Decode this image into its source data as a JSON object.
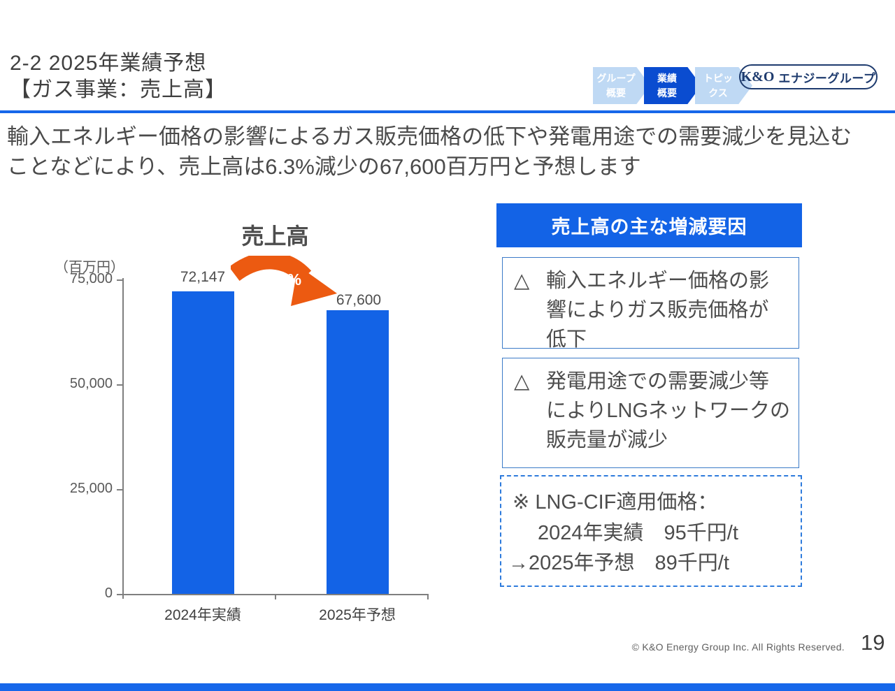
{
  "header": {
    "title_line1": "2-2 2025年業績予想",
    "title_line2": "【ガス事業：売上高】",
    "nav_steps": [
      {
        "line1": "グループ",
        "line2": "概要",
        "active": false
      },
      {
        "line1": "業績",
        "line2": "概要",
        "active": true
      },
      {
        "line1": "トピッ",
        "line2": "クス",
        "active": false
      }
    ],
    "logo_mark": "K&O",
    "logo_name": "エナジーグループ"
  },
  "lead": {
    "line1": "輸入エネルギー価格の影響によるガス販売価格の低下や発電用途での需要減少を見込む",
    "line2": "ことなどにより、売上高は6.3%減少の67,600百万円と予想します"
  },
  "chart_data": {
    "type": "bar",
    "title": "売上高",
    "unit_label": "（百万円）",
    "categories": [
      "2024年実績",
      "2025年予想"
    ],
    "values": [
      72147,
      67600
    ],
    "value_labels": [
      "72,147",
      "67,600"
    ],
    "change_label": "△6.3%",
    "ylim": [
      0,
      75000
    ],
    "yticks": [
      75000,
      50000,
      25000,
      0
    ],
    "ytick_labels": [
      "75,000",
      "50,000",
      "25,000",
      "0"
    ],
    "grid": false,
    "legend": "none",
    "bar_color": "#1363E6",
    "arrow_color": "#EC5A11"
  },
  "factors": {
    "header": "売上高の主な増減要因",
    "items": [
      {
        "marker": "△",
        "lines": [
          "輸入エネルギー価格の影",
          "響によりガス販売価格が",
          "低下"
        ]
      },
      {
        "marker": "△",
        "lines": [
          "発電用途での需要減少等",
          "によりLNGネットワークの",
          "販売量が減少"
        ]
      }
    ],
    "note_line1": "※ LNG-CIF適用価格：",
    "note_line2": "2024年実績　95千円/t",
    "note_line3": "→2025年予想　89千円/t"
  },
  "footer": {
    "copyright": "© K&O Energy Group Inc. All Rights Reserved.",
    "page_number": "19"
  },
  "colors": {
    "accent_blue": "#1363E6",
    "rule_blue": "#1667EA",
    "chevron_active_blue": "#0A4CD0",
    "chevron_inactive_blue": "#BFD9F4",
    "logo_navy": "#1E3B6E",
    "arrow_orange": "#EC5A11",
    "box_border_blue": "#3C7BC8"
  }
}
